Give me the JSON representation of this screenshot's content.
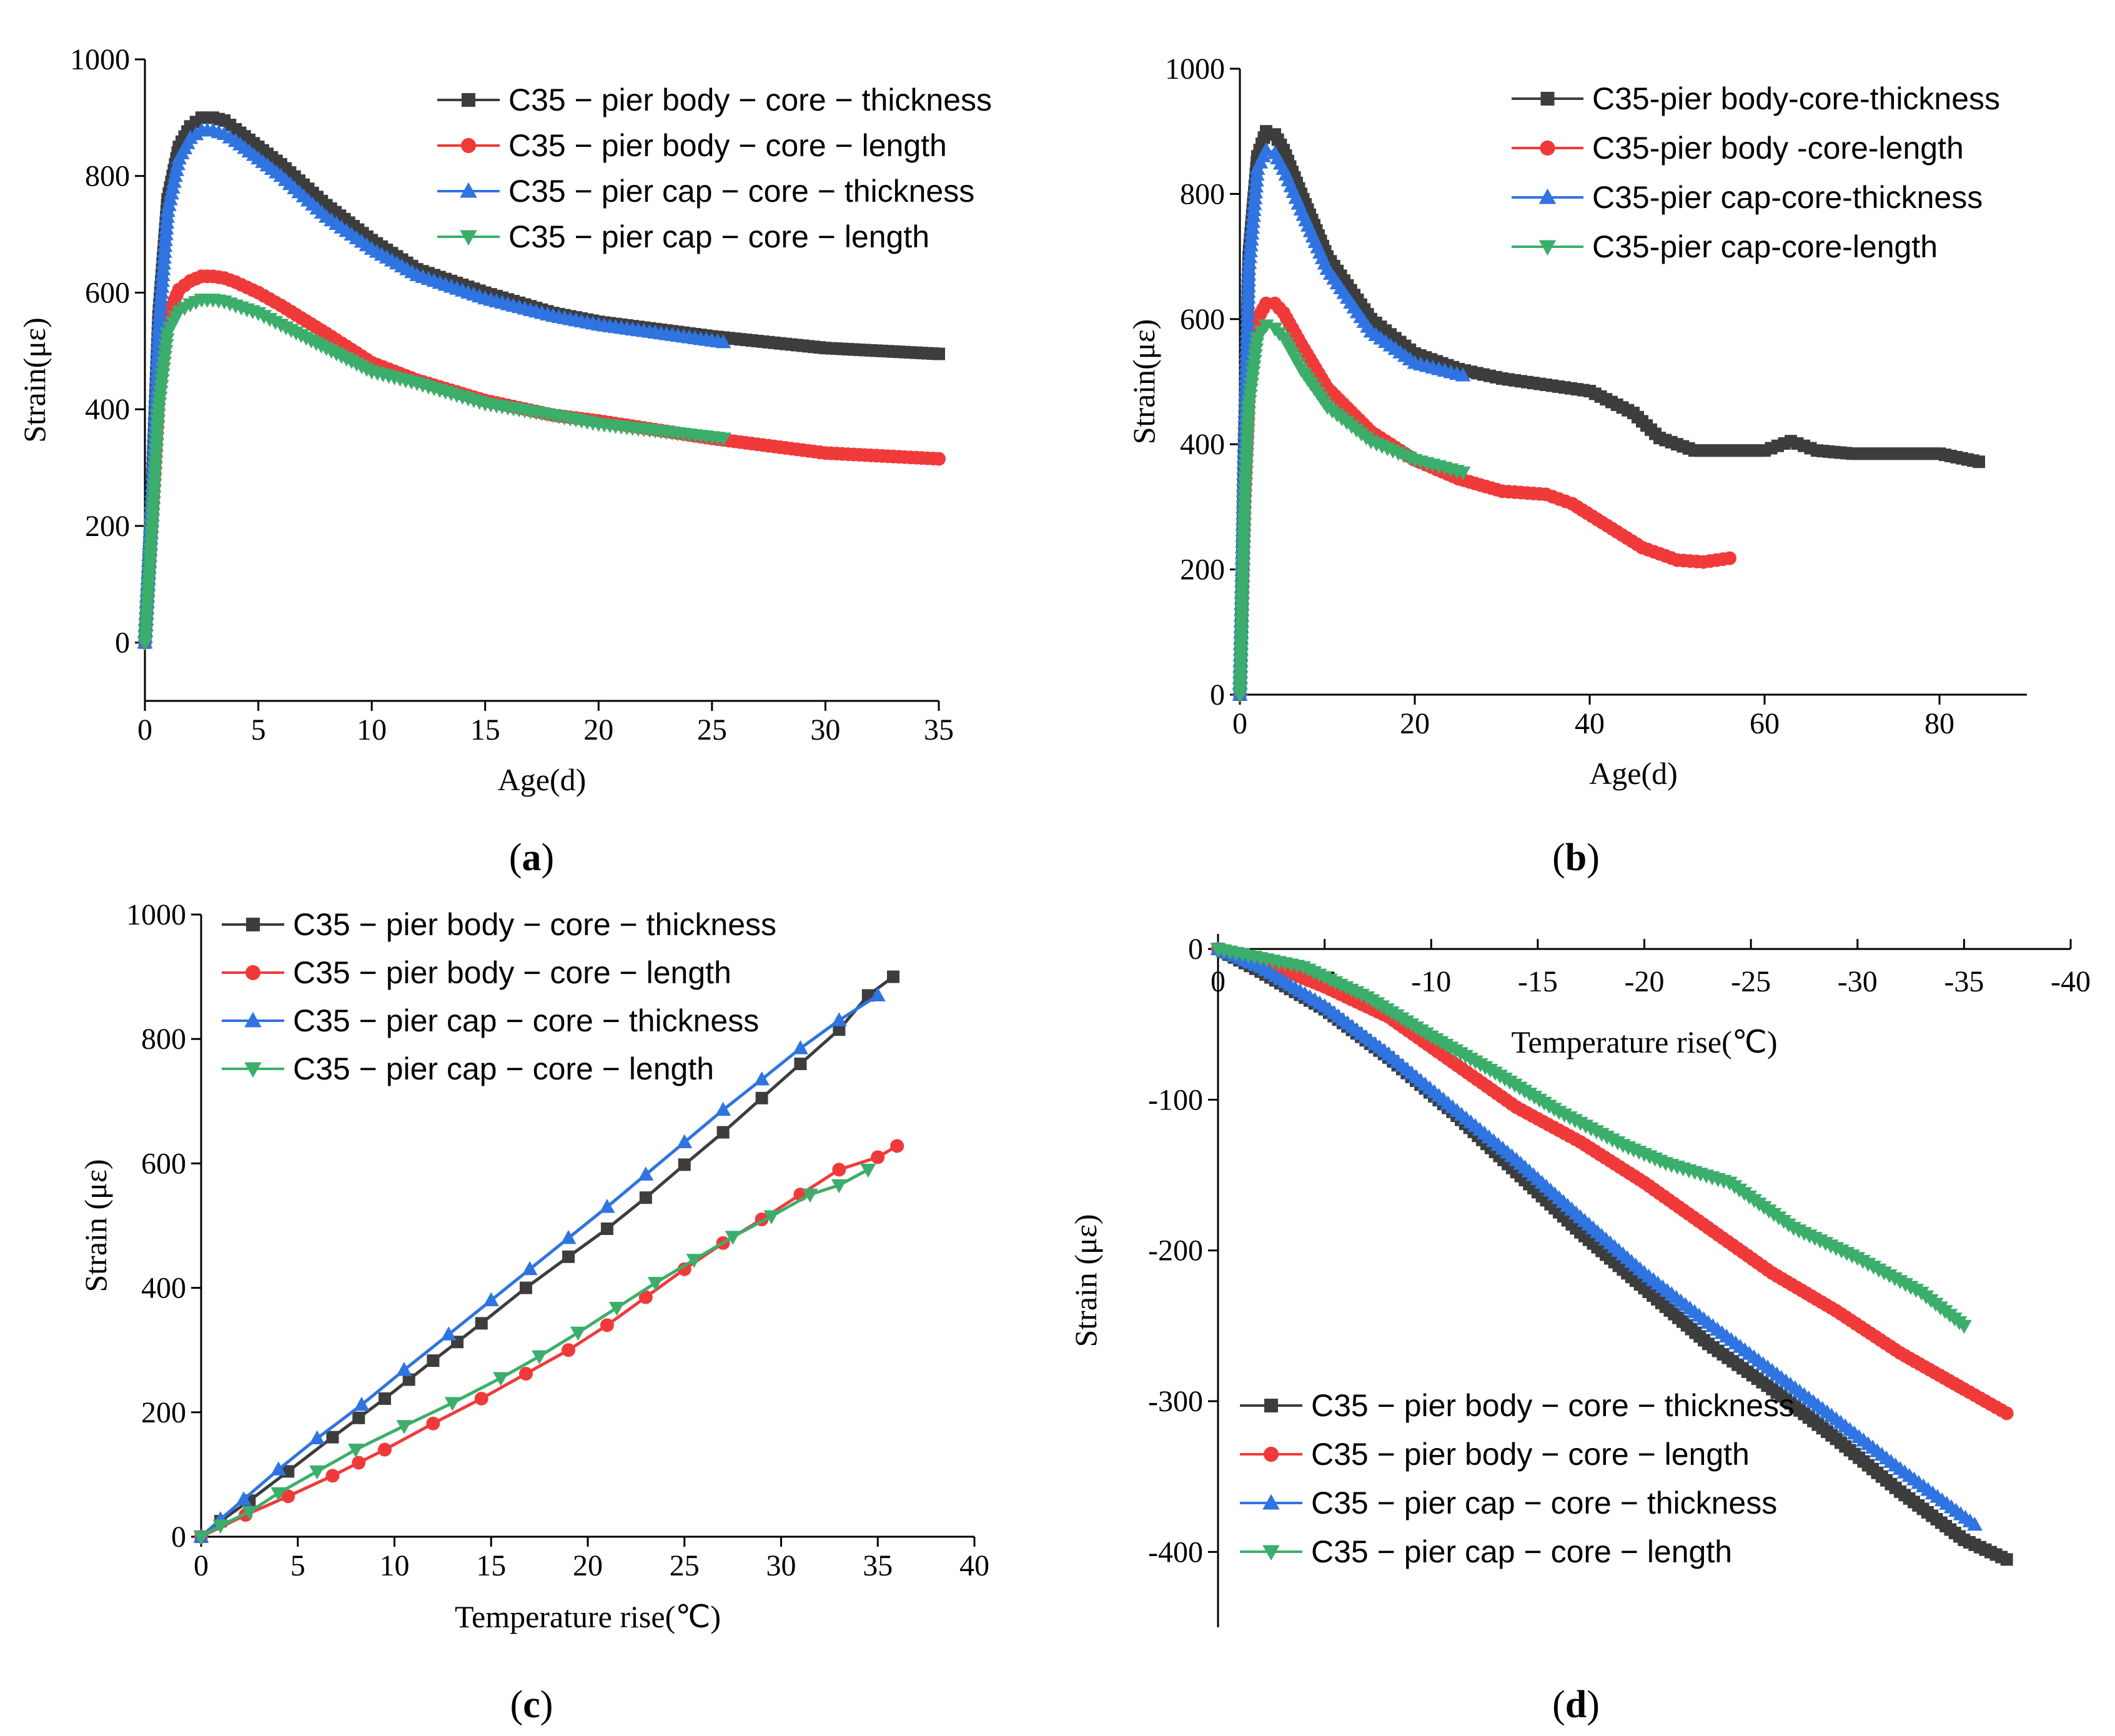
{
  "colors": {
    "black": "#3d3d3d",
    "red": "#f03a3a",
    "blue": "#2f74e0",
    "green": "#3cae6b"
  },
  "chart_data": [
    {
      "type": "line",
      "panel": "a",
      "xlabel": "Age(d)",
      "ylabel": "Strain(με)",
      "xlim": [
        0,
        35
      ],
      "ylim": [
        -100,
        1000
      ],
      "xticks": [
        0,
        5,
        10,
        15,
        20,
        25,
        30,
        35
      ],
      "yticks": [
        0,
        200,
        400,
        600,
        800,
        1000
      ],
      "legend_position": "top-right",
      "series": [
        {
          "name": "C35 − pier body − core − thickness",
          "color": "black",
          "marker": "square",
          "x": [
            0,
            0.3,
            0.6,
            1,
            1.5,
            2,
            2.5,
            3,
            3.5,
            4,
            5,
            6,
            8,
            10,
            12,
            15,
            18,
            20,
            25,
            30,
            35
          ],
          "y": [
            0,
            250,
            560,
            760,
            850,
            885,
            900,
            900,
            895,
            880,
            850,
            820,
            750,
            690,
            640,
            600,
            565,
            550,
            525,
            505,
            495
          ]
        },
        {
          "name": "C35 − pier body − core − length",
          "color": "red",
          "marker": "circle",
          "x": [
            0,
            0.3,
            0.6,
            1,
            1.5,
            2,
            2.5,
            3,
            3.5,
            4,
            5,
            6,
            8,
            10,
            12,
            15,
            18,
            20,
            25,
            30,
            35
          ],
          "y": [
            0,
            200,
            420,
            560,
            605,
            620,
            628,
            628,
            625,
            618,
            600,
            578,
            530,
            480,
            450,
            415,
            390,
            380,
            350,
            325,
            315
          ]
        },
        {
          "name": "C35 − pier cap − core − thickness",
          "color": "blue",
          "marker": "triangle-up",
          "x": [
            0,
            0.3,
            0.6,
            1,
            1.5,
            2,
            2.5,
            3,
            3.5,
            4,
            5,
            6,
            8,
            10,
            12,
            15,
            18,
            20,
            25.5
          ],
          "y": [
            0,
            240,
            540,
            740,
            830,
            865,
            878,
            878,
            872,
            860,
            830,
            800,
            730,
            675,
            630,
            590,
            560,
            545,
            515
          ]
        },
        {
          "name": "C35 − pier cap − core − length",
          "color": "green",
          "marker": "triangle-down",
          "x": [
            0,
            0.3,
            0.6,
            1,
            1.5,
            2,
            2.5,
            3,
            3.5,
            4,
            5,
            6,
            8,
            10,
            12,
            15,
            18,
            20,
            25.5
          ],
          "y": [
            0,
            190,
            400,
            530,
            568,
            580,
            588,
            588,
            585,
            578,
            565,
            545,
            505,
            465,
            445,
            410,
            390,
            375,
            350
          ]
        }
      ]
    },
    {
      "type": "line",
      "panel": "b",
      "xlabel": "Age(d)",
      "ylabel": "Strain(με)",
      "xlim": [
        0,
        90
      ],
      "ylim": [
        0,
        1000
      ],
      "xticks": [
        0,
        20,
        40,
        60,
        80
      ],
      "yticks": [
        0,
        200,
        400,
        600,
        800,
        1000
      ],
      "legend_position": "top-right",
      "series": [
        {
          "name": "C35-pier body-core-thickness",
          "color": "black",
          "marker": "square",
          "x": [
            0,
            0.5,
            1,
            2,
            3,
            4,
            5,
            7,
            10,
            15,
            20,
            25,
            30,
            35,
            40,
            45,
            48,
            52,
            56,
            60,
            63,
            66,
            70,
            75,
            80,
            84.5
          ],
          "y": [
            0,
            400,
            700,
            860,
            900,
            895,
            870,
            800,
            700,
            600,
            545,
            520,
            505,
            495,
            485,
            450,
            410,
            390,
            390,
            390,
            405,
            390,
            385,
            385,
            385,
            372
          ]
        },
        {
          "name": "C35-pier body -core-length",
          "color": "red",
          "marker": "circle",
          "x": [
            0,
            0.5,
            1,
            2,
            3,
            4,
            5,
            7,
            10,
            15,
            20,
            25,
            30,
            35,
            38,
            42,
            46,
            50,
            53,
            56
          ],
          "y": [
            0,
            300,
            480,
            600,
            625,
            625,
            610,
            560,
            490,
            420,
            375,
            345,
            325,
            320,
            305,
            270,
            235,
            215,
            212,
            218
          ]
        },
        {
          "name": "C35-pier cap-core-thickness",
          "color": "blue",
          "marker": "triangle-up",
          "x": [
            0,
            0.5,
            1,
            2,
            3,
            4,
            5,
            7,
            10,
            15,
            20,
            25.5
          ],
          "y": [
            0,
            380,
            680,
            840,
            870,
            865,
            840,
            775,
            680,
            580,
            530,
            510
          ]
        },
        {
          "name": "C35-pier cap-core-length",
          "color": "green",
          "marker": "triangle-down",
          "x": [
            0,
            0.5,
            1,
            2,
            3,
            4,
            5,
            7,
            10,
            15,
            20,
            25.5
          ],
          "y": [
            0,
            290,
            460,
            570,
            590,
            585,
            570,
            520,
            460,
            405,
            375,
            355
          ]
        }
      ]
    },
    {
      "type": "line",
      "panel": "c",
      "xlabel": "Temperature rise(℃)",
      "ylabel": "Strain (με)",
      "xlim": [
        0,
        40
      ],
      "ylim": [
        0,
        1000
      ],
      "xticks": [
        0,
        5,
        10,
        15,
        20,
        25,
        30,
        35,
        40
      ],
      "yticks": [
        0,
        200,
        400,
        600,
        800,
        1000
      ],
      "legend_position": "top-left",
      "series": [
        {
          "name": "C35 − pier body − core − thickness",
          "color": "black",
          "marker": "square",
          "x": [
            0,
            1,
            2.5,
            4.5,
            6.8,
            9.5,
            12,
            14.5,
            16.8,
            19,
            21,
            23,
            25,
            27,
            29,
            31,
            33,
            34.5,
            35.8
          ],
          "y": [
            0,
            25,
            58,
            105,
            160,
            222,
            283,
            343,
            400,
            450,
            495,
            545,
            598,
            650,
            705,
            760,
            815,
            870,
            900
          ]
        },
        {
          "name": "C35 − pier body − core − length",
          "color": "red",
          "marker": "circle",
          "x": [
            0,
            2.3,
            4.5,
            6.8,
            9.5,
            12,
            14.5,
            16.8,
            19,
            21,
            23,
            25,
            27,
            29,
            31,
            33,
            35,
            36
          ],
          "y": [
            0,
            35,
            65,
            98,
            140,
            182,
            222,
            262,
            300,
            340,
            385,
            430,
            472,
            510,
            550,
            590,
            610,
            628
          ]
        },
        {
          "name": "C35 − pier cap − core − thickness",
          "color": "blue",
          "marker": "triangle-up",
          "x": [
            0,
            1,
            2.2,
            4,
            6,
            8.3,
            10.5,
            12.8,
            15,
            17,
            19,
            21,
            23,
            25,
            27,
            29,
            31,
            33,
            35
          ],
          "y": [
            0,
            28,
            60,
            108,
            158,
            212,
            268,
            325,
            380,
            430,
            480,
            530,
            582,
            634,
            686,
            735,
            785,
            830,
            870
          ]
        },
        {
          "name": "C35 − pier cap − core − length",
          "color": "green",
          "marker": "triangle-down",
          "x": [
            0,
            1,
            2.5,
            4,
            6,
            8,
            10.5,
            13,
            15.5,
            17.5,
            19.5,
            21.5,
            23.5,
            25.5,
            27.5,
            29.5,
            31.5,
            33,
            34.5
          ],
          "y": [
            0,
            18,
            40,
            70,
            105,
            140,
            178,
            215,
            255,
            290,
            328,
            368,
            408,
            445,
            482,
            515,
            550,
            565,
            590
          ]
        }
      ]
    },
    {
      "type": "line",
      "panel": "d",
      "xlabel": "Temperature rise(℃)",
      "ylabel": "Strain (με)",
      "xlim": [
        0,
        -40
      ],
      "ylim": [
        -450,
        10
      ],
      "xticks": [
        0,
        -5,
        -10,
        -15,
        -20,
        -25,
        -30,
        -35,
        -40
      ],
      "xticklabels": [
        "0",
        "-5",
        "-10",
        "-15",
        "-20",
        "-25",
        "-30",
        "-35",
        "-40"
      ],
      "yticks": [
        0,
        -100,
        -200,
        -300,
        -400
      ],
      "legend_position": "bottom-left",
      "series": [
        {
          "name": "C35 − pier body − core − thickness",
          "color": "black",
          "marker": "square",
          "x": [
            0,
            -2,
            -5,
            -8,
            -11,
            -14,
            -17,
            -20,
            -23,
            -26,
            -29,
            -32,
            -35,
            -37
          ],
          "y": [
            0,
            -15,
            -40,
            -72,
            -108,
            -148,
            -188,
            -225,
            -262,
            -292,
            -325,
            -360,
            -392,
            -405
          ]
        },
        {
          "name": "C35 − pier body − core − length",
          "color": "red",
          "marker": "circle",
          "x": [
            0,
            -2,
            -5,
            -8,
            -11,
            -14,
            -17,
            -20,
            -23,
            -26,
            -29,
            -32,
            -35,
            -37
          ],
          "y": [
            0,
            -8,
            -25,
            -45,
            -75,
            -105,
            -128,
            -155,
            -185,
            -215,
            -240,
            -268,
            -292,
            -308
          ]
        },
        {
          "name": "C35 − pier cap − core − thickness",
          "color": "blue",
          "marker": "triangle-up",
          "x": [
            0,
            -2,
            -5,
            -8,
            -11,
            -14,
            -17,
            -20,
            -23,
            -26,
            -29,
            -32,
            -35.5
          ],
          "y": [
            0,
            -12,
            -38,
            -70,
            -105,
            -140,
            -178,
            -215,
            -248,
            -280,
            -312,
            -345,
            -382
          ]
        },
        {
          "name": "C35 − pier cap − core − length",
          "color": "green",
          "marker": "triangle-down",
          "x": [
            0,
            -2,
            -4,
            -7,
            -10,
            -13,
            -16,
            -19,
            -21,
            -24,
            -27,
            -30,
            -33,
            -35
          ],
          "y": [
            0,
            -6,
            -12,
            -32,
            -58,
            -82,
            -108,
            -130,
            -142,
            -155,
            -185,
            -205,
            -228,
            -250
          ]
        }
      ]
    }
  ],
  "panel_labels": [
    {
      "open": "(",
      "letter": "a",
      "close": ")"
    },
    {
      "open": "(",
      "letter": "b",
      "close": ")"
    },
    {
      "open": "(",
      "letter": "c",
      "close": ")"
    },
    {
      "open": "(",
      "letter": "d",
      "close": ")"
    }
  ]
}
